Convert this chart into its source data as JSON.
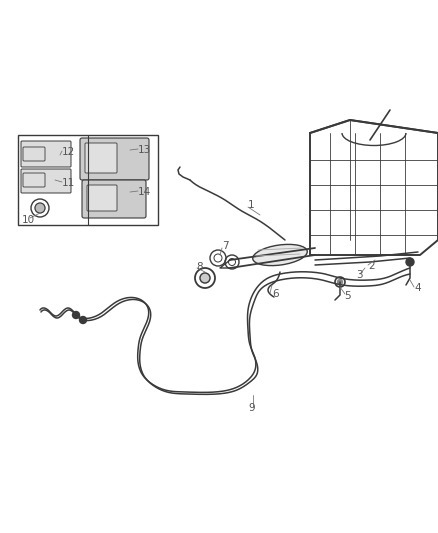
{
  "background_color": "#ffffff",
  "line_color": "#3a3a3a",
  "line_width": 1.1,
  "label_color": "#555555",
  "label_fontsize": 7.5
}
